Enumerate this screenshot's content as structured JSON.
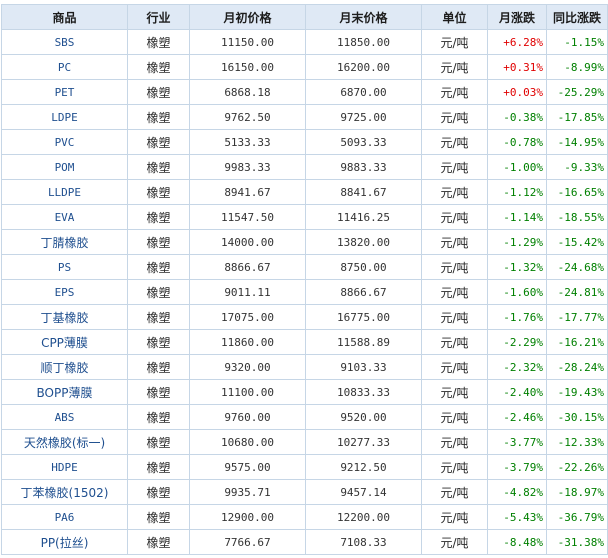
{
  "colors": {
    "header_bg": "#dfe9f5",
    "border": "#c6d6e6",
    "up": "#e00000",
    "down": "#008000",
    "name": "#1f4f8f"
  },
  "table": {
    "headers": [
      "商品",
      "行业",
      "月初价格",
      "月末价格",
      "单位",
      "月涨跌",
      "同比涨跌"
    ],
    "rows": [
      {
        "name": "SBS",
        "industry": "橡塑",
        "start": "11150.00",
        "end": "11850.00",
        "unit": "元/吨",
        "mom": "+6.28%",
        "yoy": "-1.15%",
        "mom_dir": "up",
        "yoy_dir": "down"
      },
      {
        "name": "PC",
        "industry": "橡塑",
        "start": "16150.00",
        "end": "16200.00",
        "unit": "元/吨",
        "mom": "+0.31%",
        "yoy": "-8.99%",
        "mom_dir": "up",
        "yoy_dir": "down"
      },
      {
        "name": "PET",
        "industry": "橡塑",
        "start": "6868.18",
        "end": "6870.00",
        "unit": "元/吨",
        "mom": "+0.03%",
        "yoy": "-25.29%",
        "mom_dir": "up",
        "yoy_dir": "down"
      },
      {
        "name": "LDPE",
        "industry": "橡塑",
        "start": "9762.50",
        "end": "9725.00",
        "unit": "元/吨",
        "mom": "-0.38%",
        "yoy": "-17.85%",
        "mom_dir": "down",
        "yoy_dir": "down"
      },
      {
        "name": "PVC",
        "industry": "橡塑",
        "start": "5133.33",
        "end": "5093.33",
        "unit": "元/吨",
        "mom": "-0.78%",
        "yoy": "-14.95%",
        "mom_dir": "down",
        "yoy_dir": "down"
      },
      {
        "name": "POM",
        "industry": "橡塑",
        "start": "9983.33",
        "end": "9883.33",
        "unit": "元/吨",
        "mom": "-1.00%",
        "yoy": "-9.33%",
        "mom_dir": "down",
        "yoy_dir": "down"
      },
      {
        "name": "LLDPE",
        "industry": "橡塑",
        "start": "8941.67",
        "end": "8841.67",
        "unit": "元/吨",
        "mom": "-1.12%",
        "yoy": "-16.65%",
        "mom_dir": "down",
        "yoy_dir": "down"
      },
      {
        "name": "EVA",
        "industry": "橡塑",
        "start": "11547.50",
        "end": "11416.25",
        "unit": "元/吨",
        "mom": "-1.14%",
        "yoy": "-18.55%",
        "mom_dir": "down",
        "yoy_dir": "down"
      },
      {
        "name": "丁腈橡胶",
        "industry": "橡塑",
        "start": "14000.00",
        "end": "13820.00",
        "unit": "元/吨",
        "mom": "-1.29%",
        "yoy": "-15.42%",
        "mom_dir": "down",
        "yoy_dir": "down"
      },
      {
        "name": "PS",
        "industry": "橡塑",
        "start": "8866.67",
        "end": "8750.00",
        "unit": "元/吨",
        "mom": "-1.32%",
        "yoy": "-24.68%",
        "mom_dir": "down",
        "yoy_dir": "down"
      },
      {
        "name": "EPS",
        "industry": "橡塑",
        "start": "9011.11",
        "end": "8866.67",
        "unit": "元/吨",
        "mom": "-1.60%",
        "yoy": "-24.81%",
        "mom_dir": "down",
        "yoy_dir": "down"
      },
      {
        "name": "丁基橡胶",
        "industry": "橡塑",
        "start": "17075.00",
        "end": "16775.00",
        "unit": "元/吨",
        "mom": "-1.76%",
        "yoy": "-17.77%",
        "mom_dir": "down",
        "yoy_dir": "down"
      },
      {
        "name": "CPP薄膜",
        "industry": "橡塑",
        "start": "11860.00",
        "end": "11588.89",
        "unit": "元/吨",
        "mom": "-2.29%",
        "yoy": "-16.21%",
        "mom_dir": "down",
        "yoy_dir": "down"
      },
      {
        "name": "顺丁橡胶",
        "industry": "橡塑",
        "start": "9320.00",
        "end": "9103.33",
        "unit": "元/吨",
        "mom": "-2.32%",
        "yoy": "-28.24%",
        "mom_dir": "down",
        "yoy_dir": "down"
      },
      {
        "name": "BOPP薄膜",
        "industry": "橡塑",
        "start": "11100.00",
        "end": "10833.33",
        "unit": "元/吨",
        "mom": "-2.40%",
        "yoy": "-19.43%",
        "mom_dir": "down",
        "yoy_dir": "down"
      },
      {
        "name": "ABS",
        "industry": "橡塑",
        "start": "9760.00",
        "end": "9520.00",
        "unit": "元/吨",
        "mom": "-2.46%",
        "yoy": "-30.15%",
        "mom_dir": "down",
        "yoy_dir": "down"
      },
      {
        "name": "天然橡胶(标一)",
        "industry": "橡塑",
        "start": "10680.00",
        "end": "10277.33",
        "unit": "元/吨",
        "mom": "-3.77%",
        "yoy": "-12.33%",
        "mom_dir": "down",
        "yoy_dir": "down"
      },
      {
        "name": "HDPE",
        "industry": "橡塑",
        "start": "9575.00",
        "end": "9212.50",
        "unit": "元/吨",
        "mom": "-3.79%",
        "yoy": "-22.26%",
        "mom_dir": "down",
        "yoy_dir": "down"
      },
      {
        "name": "丁苯橡胶(1502)",
        "industry": "橡塑",
        "start": "9935.71",
        "end": "9457.14",
        "unit": "元/吨",
        "mom": "-4.82%",
        "yoy": "-18.97%",
        "mom_dir": "down",
        "yoy_dir": "down"
      },
      {
        "name": "PA6",
        "industry": "橡塑",
        "start": "12900.00",
        "end": "12200.00",
        "unit": "元/吨",
        "mom": "-5.43%",
        "yoy": "-36.79%",
        "mom_dir": "down",
        "yoy_dir": "down"
      },
      {
        "name": "PP(拉丝)",
        "industry": "橡塑",
        "start": "7766.67",
        "end": "7108.33",
        "unit": "元/吨",
        "mom": "-8.48%",
        "yoy": "-31.38%",
        "mom_dir": "down",
        "yoy_dir": "down"
      }
    ]
  }
}
